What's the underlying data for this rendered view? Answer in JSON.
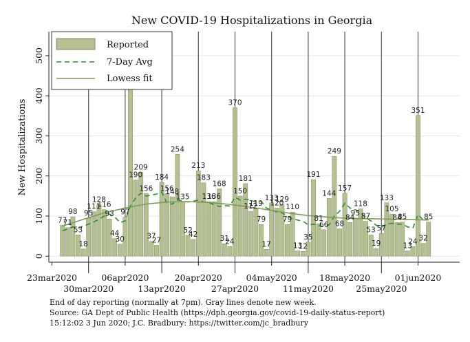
{
  "chart_data": {
    "type": "bar",
    "title": "New COVID-19 Hospitalizations in Georgia",
    "ylabel": "New Hospitalizations",
    "xlabel": "",
    "ylim": [
      -15,
      560
    ],
    "yticks": [
      0,
      100,
      200,
      300,
      400,
      500
    ],
    "grid": true,
    "legend_position": "top-left",
    "legend": [
      "Reported",
      "7-Day Avg",
      "Lowess fit"
    ],
    "colors": {
      "bar_fill": "#b4bf94",
      "bar_edge": "#7f8c5a",
      "avg_line": "#2e8b2e",
      "lowess_line": "#7f9a5a",
      "week_line": "#555555",
      "grid": "#e6e6e6"
    },
    "xtick_labels": [
      {
        "label": "23mar2020",
        "day": 0,
        "row": 0
      },
      {
        "label": "30mar2020",
        "day": 7,
        "row": 1
      },
      {
        "label": "06apr2020",
        "day": 14,
        "row": 0
      },
      {
        "label": "13apr2020",
        "day": 21,
        "row": 1
      },
      {
        "label": "20apr2020",
        "day": 28,
        "row": 0
      },
      {
        "label": "27apr2020",
        "day": 35,
        "row": 1
      },
      {
        "label": "04may2020",
        "day": 42,
        "row": 0
      },
      {
        "label": "11may2020",
        "day": 49,
        "row": 1
      },
      {
        "label": "18may2020",
        "day": 56,
        "row": 0
      },
      {
        "label": "25may2020",
        "day": 63,
        "row": 1
      },
      {
        "label": "01jun2020",
        "day": 70,
        "row": 0
      }
    ],
    "week_lines_days": [
      7,
      14,
      21,
      28,
      35,
      42,
      49,
      56,
      63,
      70
    ],
    "bars": [
      {
        "day": 2,
        "value": 77,
        "label": "77"
      },
      {
        "day": 3,
        "value": 71,
        "label": "71"
      },
      {
        "day": 4,
        "value": 98,
        "label": "98"
      },
      {
        "day": 5,
        "value": 53,
        "label": "53"
      },
      {
        "day": 6,
        "value": 18,
        "label": "18"
      },
      {
        "day": 7,
        "value": 95,
        "label": "95"
      },
      {
        "day": 8,
        "value": 111,
        "label": "111"
      },
      {
        "day": 9,
        "value": 128,
        "label": "128"
      },
      {
        "day": 10,
        "value": 116,
        "label": "116"
      },
      {
        "day": 11,
        "value": 93,
        "label": "93"
      },
      {
        "day": 12,
        "value": 44,
        "label": "44"
      },
      {
        "day": 13,
        "value": 30,
        "label": "30"
      },
      {
        "day": 14,
        "value": 97,
        "label": "97"
      },
      {
        "day": 15,
        "value": 450,
        "label": ""
      },
      {
        "day": 16,
        "value": 190,
        "label": "190"
      },
      {
        "day": 17,
        "value": 209,
        "label": "209"
      },
      {
        "day": 18,
        "value": 156,
        "label": "156"
      },
      {
        "day": 19,
        "value": 37,
        "label": "37"
      },
      {
        "day": 20,
        "value": 27,
        "label": "27"
      },
      {
        "day": 21,
        "value": 184,
        "label": "184"
      },
      {
        "day": 22,
        "value": 156,
        "label": "156"
      },
      {
        "day": 23,
        "value": 148,
        "label": "148"
      },
      {
        "day": 24,
        "value": 254,
        "label": "254"
      },
      {
        "day": 25,
        "value": 135,
        "label": "135"
      },
      {
        "day": 26,
        "value": 52,
        "label": "52"
      },
      {
        "day": 27,
        "value": 42,
        "label": "42"
      },
      {
        "day": 28,
        "value": 213,
        "label": "213"
      },
      {
        "day": 29,
        "value": 183,
        "label": "183"
      },
      {
        "day": 30,
        "value": 136,
        "label": "136"
      },
      {
        "day": 31,
        "value": 136,
        "label": "136"
      },
      {
        "day": 32,
        "value": 168,
        "label": "168"
      },
      {
        "day": 33,
        "value": 31,
        "label": "31"
      },
      {
        "day": 34,
        "value": 24,
        "label": "24"
      },
      {
        "day": 35,
        "value": 370,
        "label": "370"
      },
      {
        "day": 36,
        "value": 150,
        "label": "150"
      },
      {
        "day": 37,
        "value": 181,
        "label": "181"
      },
      {
        "day": 38,
        "value": 112,
        "label": "112"
      },
      {
        "day": 39,
        "value": 119,
        "label": "119"
      },
      {
        "day": 40,
        "value": 79,
        "label": "79"
      },
      {
        "day": 41,
        "value": 17,
        "label": "17"
      },
      {
        "day": 42,
        "value": 133,
        "label": "133"
      },
      {
        "day": 43,
        "value": 120,
        "label": "120"
      },
      {
        "day": 44,
        "value": 129,
        "label": "129"
      },
      {
        "day": 45,
        "value": 79,
        "label": "79"
      },
      {
        "day": 46,
        "value": 110,
        "label": "110"
      },
      {
        "day": 47,
        "value": 13,
        "label": "13"
      },
      {
        "day": 48,
        "value": 12,
        "label": "12"
      },
      {
        "day": 49,
        "value": 35,
        "label": "35"
      },
      {
        "day": 50,
        "value": 191,
        "label": "191"
      },
      {
        "day": 51,
        "value": 81,
        "label": "81"
      },
      {
        "day": 52,
        "value": 66,
        "label": "66"
      },
      {
        "day": 53,
        "value": 144,
        "label": "144"
      },
      {
        "day": 54,
        "value": 249,
        "label": "249"
      },
      {
        "day": 55,
        "value": 68,
        "label": "68"
      },
      {
        "day": 56,
        "value": 157,
        "label": "157"
      },
      {
        "day": 57,
        "value": 84,
        "label": "84"
      },
      {
        "day": 58,
        "value": 95,
        "label": "95"
      },
      {
        "day": 59,
        "value": 118,
        "label": "118"
      },
      {
        "day": 60,
        "value": 87,
        "label": "87"
      },
      {
        "day": 61,
        "value": 53,
        "label": "53"
      },
      {
        "day": 62,
        "value": 19,
        "label": "19"
      },
      {
        "day": 63,
        "value": 57,
        "label": "57"
      },
      {
        "day": 64,
        "value": 133,
        "label": "133"
      },
      {
        "day": 65,
        "value": 105,
        "label": "105"
      },
      {
        "day": 66,
        "value": 84,
        "label": "84"
      },
      {
        "day": 67,
        "value": 85,
        "label": "85"
      },
      {
        "day": 68,
        "value": 13,
        "label": "13"
      },
      {
        "day": 69,
        "value": 24,
        "label": "24"
      },
      {
        "day": 70,
        "value": 351,
        "label": "351"
      },
      {
        "day": 71,
        "value": 32,
        "label": "32"
      },
      {
        "day": 72,
        "value": 85,
        "label": "85"
      }
    ],
    "seven_day_avg": [
      {
        "day": 2,
        "value": 63
      },
      {
        "day": 3,
        "value": 68
      },
      {
        "day": 4,
        "value": 73
      },
      {
        "day": 5,
        "value": 70
      },
      {
        "day": 6,
        "value": 75
      },
      {
        "day": 7,
        "value": 80
      },
      {
        "day": 8,
        "value": 85
      },
      {
        "day": 9,
        "value": 92
      },
      {
        "day": 10,
        "value": 100
      },
      {
        "day": 11,
        "value": 105
      },
      {
        "day": 12,
        "value": 98
      },
      {
        "day": 13,
        "value": 84
      },
      {
        "day": 14,
        "value": 88
      },
      {
        "day": 15,
        "value": 125
      },
      {
        "day": 16,
        "value": 145
      },
      {
        "day": 17,
        "value": 157
      },
      {
        "day": 18,
        "value": 150
      },
      {
        "day": 19,
        "value": 152
      },
      {
        "day": 20,
        "value": 155
      },
      {
        "day": 21,
        "value": 160
      },
      {
        "day": 22,
        "value": 132
      },
      {
        "day": 23,
        "value": 130
      },
      {
        "day": 24,
        "value": 140
      },
      {
        "day": 25,
        "value": 138
      },
      {
        "day": 26,
        "value": 135
      },
      {
        "day": 27,
        "value": 137
      },
      {
        "day": 28,
        "value": 140
      },
      {
        "day": 29,
        "value": 135
      },
      {
        "day": 30,
        "value": 134
      },
      {
        "day": 31,
        "value": 128
      },
      {
        "day": 32,
        "value": 124
      },
      {
        "day": 33,
        "value": 126
      },
      {
        "day": 34,
        "value": 125
      },
      {
        "day": 35,
        "value": 147
      },
      {
        "day": 36,
        "value": 140
      },
      {
        "day": 37,
        "value": 142
      },
      {
        "day": 38,
        "value": 140
      },
      {
        "day": 39,
        "value": 135
      },
      {
        "day": 40,
        "value": 137
      },
      {
        "day": 41,
        "value": 120
      },
      {
        "day": 42,
        "value": 115
      },
      {
        "day": 43,
        "value": 110
      },
      {
        "day": 44,
        "value": 108
      },
      {
        "day": 45,
        "value": 100
      },
      {
        "day": 46,
        "value": 93
      },
      {
        "day": 47,
        "value": 90
      },
      {
        "day": 48,
        "value": 87
      },
      {
        "day": 49,
        "value": 78
      },
      {
        "day": 50,
        "value": 80
      },
      {
        "day": 51,
        "value": 76
      },
      {
        "day": 52,
        "value": 74
      },
      {
        "day": 53,
        "value": 78
      },
      {
        "day": 54,
        "value": 100
      },
      {
        "day": 55,
        "value": 112
      },
      {
        "day": 56,
        "value": 132
      },
      {
        "day": 57,
        "value": 120
      },
      {
        "day": 58,
        "value": 116
      },
      {
        "day": 59,
        "value": 110
      },
      {
        "day": 60,
        "value": 95
      },
      {
        "day": 61,
        "value": 88
      },
      {
        "day": 62,
        "value": 77
      },
      {
        "day": 63,
        "value": 72
      },
      {
        "day": 64,
        "value": 80
      },
      {
        "day": 65,
        "value": 82
      },
      {
        "day": 66,
        "value": 80
      },
      {
        "day": 67,
        "value": 80
      },
      {
        "day": 68,
        "value": 73
      },
      {
        "day": 69,
        "value": 70
      },
      {
        "day": 70,
        "value": 104
      },
      {
        "day": 71,
        "value": 90
      },
      {
        "day": 72,
        "value": 92
      }
    ],
    "lowess": [
      {
        "day": 2,
        "value": 75
      },
      {
        "day": 6,
        "value": 92
      },
      {
        "day": 10,
        "value": 108
      },
      {
        "day": 14,
        "value": 120
      },
      {
        "day": 18,
        "value": 130
      },
      {
        "day": 22,
        "value": 135
      },
      {
        "day": 26,
        "value": 136
      },
      {
        "day": 30,
        "value": 134
      },
      {
        "day": 34,
        "value": 129
      },
      {
        "day": 38,
        "value": 122
      },
      {
        "day": 42,
        "value": 114
      },
      {
        "day": 46,
        "value": 106
      },
      {
        "day": 50,
        "value": 100
      },
      {
        "day": 54,
        "value": 96
      },
      {
        "day": 58,
        "value": 94
      },
      {
        "day": 62,
        "value": 93
      },
      {
        "day": 66,
        "value": 92
      },
      {
        "day": 72,
        "value": 90
      }
    ]
  },
  "footnotes": [
    "End of day reporting (normally at 7pm). Gray lines denote new week.",
    "Source: GA Dept of Public Health (https://dph.georgia.gov/covid-19-daily-status-report)",
    "15:12:02   3 Jun 2020; J.C. Bradbury: https://twitter.com/jc_bradbury"
  ]
}
